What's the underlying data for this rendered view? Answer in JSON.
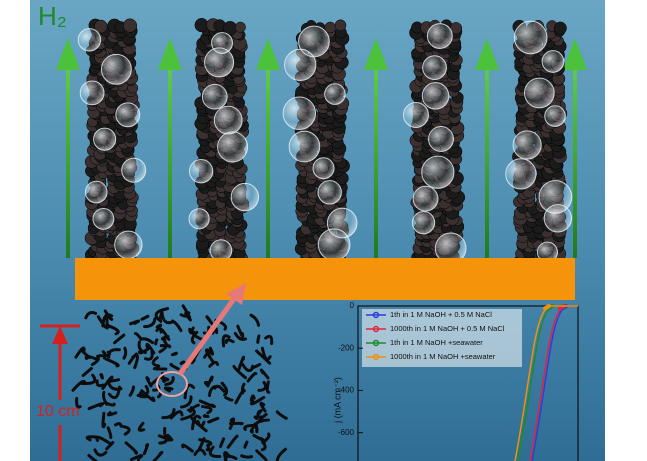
{
  "labels": {
    "gas": "H₂",
    "height": "10 cm"
  },
  "chart_data": {
    "type": "line",
    "y_label": "j (mA cm⁻²)",
    "ylim": [
      -740,
      0
    ],
    "yticks": [
      0,
      -200,
      -400,
      -600
    ],
    "series": [
      {
        "name": "1th in 1 M NaOH + 0.5 M NaCl",
        "color": "#2a3de0"
      },
      {
        "name": "1000th in 1 M NaOH + 0.5 M NaCl",
        "color": "#e0263a"
      },
      {
        "name": "1th in 1 M NaOH +seawater",
        "color": "#1f8a2e"
      },
      {
        "name": "1000th in 1 M NaOH +seawater",
        "color": "#f09010"
      }
    ]
  }
}
